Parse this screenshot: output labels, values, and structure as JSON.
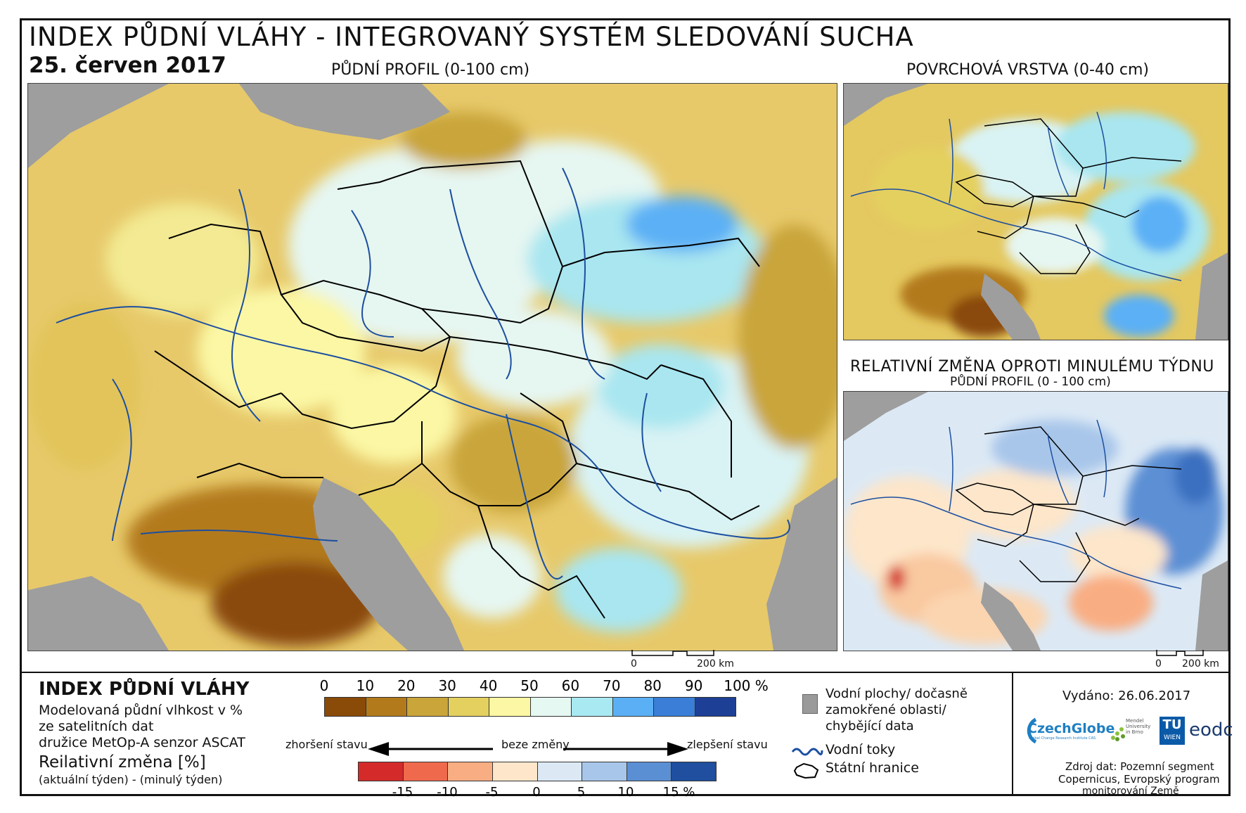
{
  "header": {
    "title": "INDEX PŮDNÍ VLÁHY - INTEGROVANÝ SYSTÉM SLEDOVÁNÍ SUCHA",
    "date": "25. červen 2017"
  },
  "maps": {
    "main_title": "PŮDNÍ PROFIL (0-100 cm)",
    "surface_title": "POVRCHOVÁ VRSTVA (0-40 cm)",
    "change_title": "RELATIVNÍ ZMĚNA OPROTI MINULÉMU TÝDNU",
    "change_subtitle": "PŮDNÍ PROFIL (0 - 100 cm)",
    "scale_zero": "0",
    "scale_main": "200 km",
    "scale_change": "200 km"
  },
  "legend": {
    "title": "INDEX PŮDNÍ VLÁHY",
    "desc_1": "Modelovaná půdní vlhkost v %",
    "desc_2": "ze satelitních dat",
    "desc_3": "družice MetOp-A senzor ASCAT",
    "change_title": "Reilativní změna [%]",
    "change_desc": "(aktuální týden) - (minulý týden)",
    "moisture_ticks": [
      "0",
      "10",
      "20",
      "30",
      "40",
      "50",
      "60",
      "70",
      "80",
      "90",
      "100 %"
    ],
    "moisture_colors": [
      "#8a4a08",
      "#b37a1c",
      "#c9a53a",
      "#e4d05f",
      "#fbf7a4",
      "#e5f8f2",
      "#a9e9f2",
      "#5bb0f5",
      "#3a7ed8",
      "#1e3f96"
    ],
    "worse_label": "zhoršení stavu",
    "nochange_label": "beze změny",
    "better_label": "zlepšení stavu",
    "change_ticks": [
      "-15",
      "-10",
      "-5",
      "0",
      "5",
      "10",
      "15 %"
    ],
    "change_colors": [
      "#d42a2a",
      "#ef6a4d",
      "#f9ad82",
      "#fde6ca",
      "#dce9f5",
      "#a8c6ea",
      "#5b8fd4",
      "#1f4f9e"
    ],
    "gray_label_1": "Vodní plochy/ dočasně",
    "gray_label_2": "zamokřené oblasti/",
    "gray_label_3": "chybějící data",
    "rivers_label": "Vodní toky",
    "borders_label": "Státní hranice"
  },
  "info": {
    "issued": "Vydáno: 26.06.2017",
    "logo_czechglobe": "CzechGlobe",
    "logo_czechglobe_sub": "Global Change Research Institute CAS",
    "logo_mendel": "Mendel University in Brno",
    "logo_tu_1": "TU",
    "logo_tu_2": "WIEN",
    "logo_eodc": "eodc",
    "source_1": "Zdroj dat: Pozemní segment",
    "source_2": "Copernicus, Evropský program",
    "source_3": "monitorování Země"
  }
}
